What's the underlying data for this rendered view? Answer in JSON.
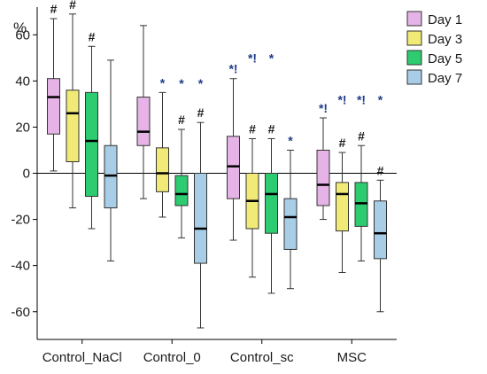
{
  "chart_data": {
    "type": "boxplot",
    "ylabel": "%",
    "ylim": [
      -72,
      72
    ],
    "yticks": [
      -60,
      -40,
      -20,
      0,
      20,
      40,
      60
    ],
    "reference_line": 0,
    "categories": [
      "Control_NaCl",
      "Control_0",
      "Control_sc",
      "MSC"
    ],
    "legend_position": "top-right",
    "series": [
      {
        "name": "Day 1",
        "color": "#e6b3e6",
        "boxes": [
          {
            "min": 1,
            "q1": 17,
            "median": 33,
            "q3": 41,
            "max": 67,
            "marker": "#"
          },
          {
            "min": -11,
            "q1": 12,
            "median": 18,
            "q3": 33,
            "max": 64,
            "marker": ""
          },
          {
            "min": -29,
            "q1": -11,
            "median": 3,
            "q3": 16,
            "max": 41,
            "marker": "*!"
          },
          {
            "min": -20,
            "q1": -14,
            "median": -5,
            "q3": 10,
            "max": 24,
            "marker": "*!"
          }
        ]
      },
      {
        "name": "Day 3",
        "color": "#f2ea77",
        "boxes": [
          {
            "min": -15,
            "q1": 5,
            "median": 26,
            "q3": 36,
            "max": 69,
            "marker": "#"
          },
          {
            "min": -19,
            "q1": -8,
            "median": 0,
            "q3": 11,
            "max": 35,
            "marker": "*"
          },
          {
            "min": -45,
            "q1": -24,
            "median": -12,
            "q3": 0,
            "max": 15,
            "marker": "#"
          },
          {
            "min": -43,
            "q1": -25,
            "median": -9,
            "q3": -4,
            "max": 9,
            "marker": "#"
          }
        ]
      },
      {
        "name": "Day 5",
        "color": "#2ecc71",
        "boxes": [
          {
            "min": -24,
            "q1": -10,
            "median": 14,
            "q3": 35,
            "max": 55,
            "marker": "#"
          },
          {
            "min": -28,
            "q1": -14,
            "median": -9,
            "q3": -1,
            "max": 19,
            "marker": "#"
          },
          {
            "min": -52,
            "q1": -26,
            "median": -9,
            "q3": 0,
            "max": 15,
            "marker": "#"
          },
          {
            "min": -38,
            "q1": -23,
            "median": -13,
            "q3": -4,
            "max": 12,
            "marker": "#"
          }
        ]
      },
      {
        "name": "Day 7",
        "color": "#a8cde6",
        "boxes": [
          {
            "min": -38,
            "q1": -15,
            "median": -1,
            "q3": 12,
            "max": 49,
            "marker": ""
          },
          {
            "min": -67,
            "q1": -39,
            "median": -24,
            "q3": 0,
            "max": 22,
            "marker": "#"
          },
          {
            "min": -50,
            "q1": -33,
            "median": -19,
            "q3": -11,
            "max": 10,
            "marker": "*"
          },
          {
            "min": -60,
            "q1": -37,
            "median": -26,
            "q3": -12,
            "max": -3,
            "marker": "#"
          }
        ]
      }
    ],
    "extra_markers": [
      {
        "category": "Control_0",
        "series": "Day 5",
        "marker": "*"
      },
      {
        "category": "Control_0",
        "series": "Day 7",
        "marker": "*"
      },
      {
        "category": "Control_sc",
        "series": "Day 3",
        "marker": "*!"
      },
      {
        "category": "Control_sc",
        "series": "Day 5",
        "marker": "*"
      },
      {
        "category": "MSC",
        "series": "Day 3",
        "marker": "*!"
      },
      {
        "category": "MSC",
        "series": "Day 5",
        "marker": "*!"
      },
      {
        "category": "MSC",
        "series": "Day 7",
        "marker": "*"
      }
    ]
  }
}
